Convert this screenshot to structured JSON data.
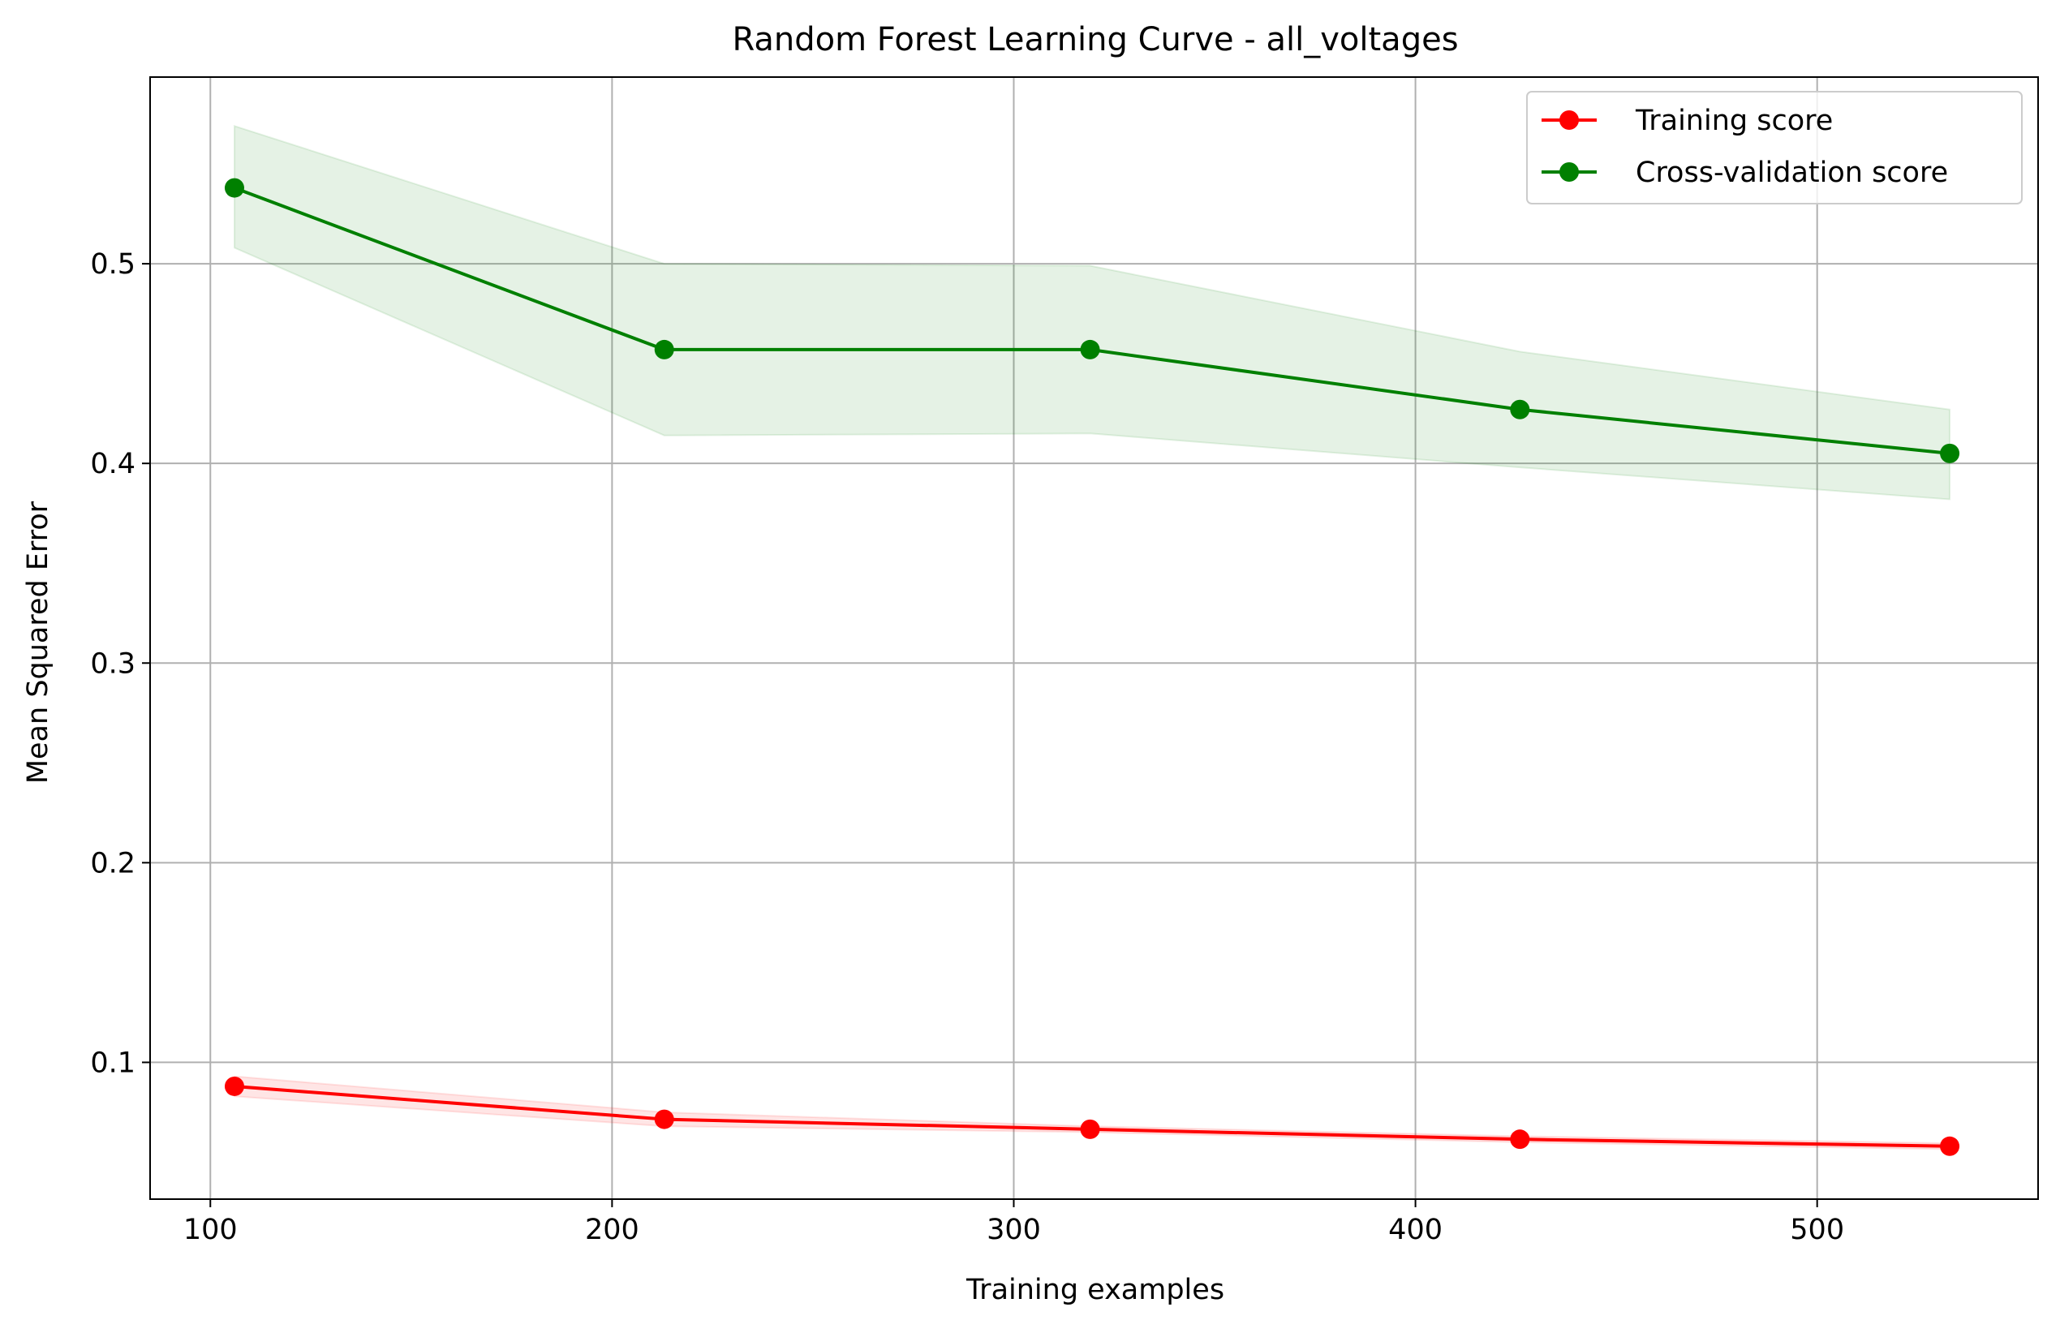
{
  "chart_data": {
    "type": "line",
    "title": "Random Forest Learning Curve - all_voltages",
    "xlabel": "Training examples",
    "ylabel": "Mean Squared Error",
    "xlim": [
      85,
      555
    ],
    "ylim": [
      0.0315,
      0.5935
    ],
    "x_ticks": [
      100,
      200,
      300,
      400,
      500
    ],
    "y_ticks": [
      0.1,
      0.2,
      0.3,
      0.4,
      0.5
    ],
    "x_tick_labels": [
      "100",
      "200",
      "300",
      "400",
      "500"
    ],
    "y_tick_labels": [
      "0.1",
      "0.2",
      "0.3",
      "0.4",
      "0.5"
    ],
    "grid": true,
    "legend_position": "top-right",
    "x": [
      106,
      213,
      319,
      426,
      533
    ],
    "series": [
      {
        "name": "Training score",
        "color": "#ff0000",
        "band_color": "#ff0000",
        "marker": "circle",
        "values": [
          0.088,
          0.0715,
          0.0665,
          0.0615,
          0.058
        ],
        "band_upper": [
          0.093,
          0.075,
          0.068,
          0.063,
          0.0595
        ],
        "band_lower": [
          0.083,
          0.068,
          0.065,
          0.06,
          0.0565
        ]
      },
      {
        "name": "Cross-validation score",
        "color": "#008000",
        "band_color": "#008000",
        "marker": "circle",
        "values": [
          0.538,
          0.457,
          0.457,
          0.427,
          0.405
        ],
        "band_upper": [
          0.569,
          0.5,
          0.499,
          0.456,
          0.427
        ],
        "band_lower": [
          0.508,
          0.414,
          0.415,
          0.398,
          0.382
        ]
      }
    ]
  }
}
